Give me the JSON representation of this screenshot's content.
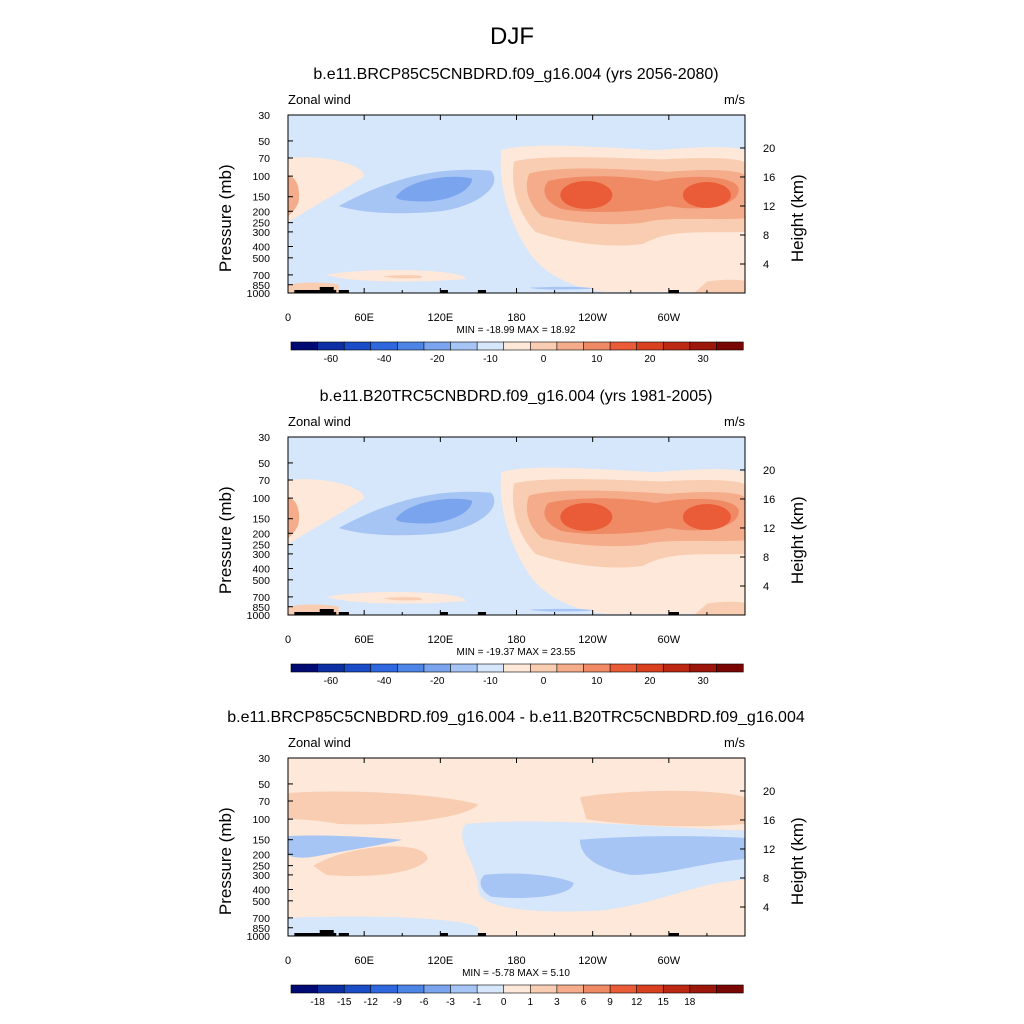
{
  "figure": {
    "title": "DJF"
  },
  "chart_data": [
    {
      "type": "heatmap",
      "title": "b.e11.BRCP85C5CNBDRD.f09_g16.004 (yrs 2056-2080)",
      "left_label": "Zonal wind",
      "right_label": "m/s",
      "ylabel": "Pressure (mb)",
      "ylabel_right": "Height (km)",
      "x_ticks": [
        "0",
        "60E",
        "120E",
        "180",
        "120W",
        "60W"
      ],
      "x_tick_lons": [
        0,
        60,
        120,
        180,
        240,
        300
      ],
      "xlim": [
        0,
        360
      ],
      "y_ticks": [
        "30",
        "50",
        "70",
        "100",
        "150",
        "200",
        "250",
        "300",
        "400",
        "500",
        "700",
        "850",
        "1000"
      ],
      "y_tick_values": [
        30,
        50,
        70,
        100,
        150,
        200,
        250,
        300,
        400,
        500,
        700,
        850,
        1000
      ],
      "y_scale": "log",
      "ylim": [
        1000,
        30
      ],
      "y2_ticks": [
        "20",
        "16",
        "12",
        "8",
        "4"
      ],
      "y2_tick_values": [
        20,
        16,
        12,
        8,
        4
      ],
      "stats": "MIN = -18.99  MAX =  18.92",
      "colorbar": {
        "levels": [
          "-60",
          "-40",
          "-20",
          "-10",
          "0",
          "10",
          "20",
          "30"
        ],
        "colors": [
          "#000a73",
          "#0c2fa3",
          "#1a4cc7",
          "#2f68de",
          "#4d85e6",
          "#7aa5ee",
          "#a6c5f5",
          "#d6e6fb",
          "#fde8d9",
          "#f9cdb2",
          "#f5ac8b",
          "#f08a65",
          "#ea5c37",
          "#d9401f",
          "#bd2813",
          "#9c160a",
          "#7a0603"
        ]
      },
      "features": [
        {
          "kind": "jet",
          "lon": 315,
          "p": 140,
          "value": 18.9
        },
        {
          "kind": "jet",
          "lon": 210,
          "p": 140,
          "value": 16
        },
        {
          "kind": "easterly",
          "lon": 105,
          "p": 120,
          "value": -19
        },
        {
          "kind": "surface_westerly",
          "lon": 95,
          "p": 750,
          "value": 5
        }
      ]
    },
    {
      "type": "heatmap",
      "title": "b.e11.B20TRC5CNBDRD.f09_g16.004 (yrs 1981-2005)",
      "left_label": "Zonal wind",
      "right_label": "m/s",
      "ylabel": "Pressure (mb)",
      "ylabel_right": "Height (km)",
      "x_ticks": [
        "0",
        "60E",
        "120E",
        "180",
        "120W",
        "60W"
      ],
      "x_tick_lons": [
        0,
        60,
        120,
        180,
        240,
        300
      ],
      "xlim": [
        0,
        360
      ],
      "y_ticks": [
        "30",
        "50",
        "70",
        "100",
        "150",
        "200",
        "250",
        "300",
        "400",
        "500",
        "700",
        "850",
        "1000"
      ],
      "y_tick_values": [
        30,
        50,
        70,
        100,
        150,
        200,
        250,
        300,
        400,
        500,
        700,
        850,
        1000
      ],
      "y_scale": "log",
      "ylim": [
        1000,
        30
      ],
      "y2_ticks": [
        "20",
        "16",
        "12",
        "8",
        "4"
      ],
      "y2_tick_values": [
        20,
        16,
        12,
        8,
        4
      ],
      "stats": "MIN = -19.37  MAX =  23.55",
      "colorbar": {
        "levels": [
          "-60",
          "-40",
          "-20",
          "-10",
          "0",
          "10",
          "20",
          "30"
        ],
        "colors": [
          "#000a73",
          "#0c2fa3",
          "#1a4cc7",
          "#2f68de",
          "#4d85e6",
          "#7aa5ee",
          "#a6c5f5",
          "#d6e6fb",
          "#fde8d9",
          "#f9cdb2",
          "#f5ac8b",
          "#f08a65",
          "#ea5c37",
          "#d9401f",
          "#bd2813",
          "#9c160a",
          "#7a0603"
        ]
      },
      "features": [
        {
          "kind": "jet",
          "lon": 240,
          "p": 155,
          "value": 23.5
        },
        {
          "kind": "jet",
          "lon": 330,
          "p": 155,
          "value": 22
        },
        {
          "kind": "easterly",
          "lon": 110,
          "p": 110,
          "value": -19.4
        },
        {
          "kind": "surface_westerly",
          "lon": 90,
          "p": 780,
          "value": 5
        }
      ]
    },
    {
      "type": "heatmap",
      "title": "b.e11.BRCP85C5CNBDRD.f09_g16.004 - b.e11.B20TRC5CNBDRD.f09_g16.004",
      "left_label": "Zonal wind",
      "right_label": "m/s",
      "ylabel": "Pressure (mb)",
      "ylabel_right": "Height (km)",
      "x_ticks": [
        "0",
        "60E",
        "120E",
        "180",
        "120W",
        "60W"
      ],
      "x_tick_lons": [
        0,
        60,
        120,
        180,
        240,
        300
      ],
      "xlim": [
        0,
        360
      ],
      "y_ticks": [
        "30",
        "50",
        "70",
        "100",
        "150",
        "200",
        "250",
        "300",
        "400",
        "500",
        "700",
        "850",
        "1000"
      ],
      "y_tick_values": [
        30,
        50,
        70,
        100,
        150,
        200,
        250,
        300,
        400,
        500,
        700,
        850,
        1000
      ],
      "y_scale": "log",
      "ylim": [
        1000,
        30
      ],
      "y2_ticks": [
        "20",
        "16",
        "12",
        "8",
        "4"
      ],
      "y2_tick_values": [
        20,
        16,
        12,
        8,
        4
      ],
      "stats": "MIN = -5.78  MAX =  5.10",
      "colorbar": {
        "levels": [
          "-18",
          "-15",
          "-12",
          "-9",
          "-6",
          "-3",
          "-1",
          "0",
          "1",
          "3",
          "6",
          "9",
          "12",
          "15",
          "18"
        ],
        "colors": [
          "#000a73",
          "#0c2fa3",
          "#1a4cc7",
          "#2f68de",
          "#4d85e6",
          "#7aa5ee",
          "#a6c5f5",
          "#d6e6fb",
          "#fde8d9",
          "#f9cdb2",
          "#f5ac8b",
          "#f08a65",
          "#ea5c37",
          "#d9401f",
          "#bd2813",
          "#9c160a",
          "#7a0603"
        ]
      },
      "features": [
        {
          "kind": "negative_band",
          "lon": 260,
          "p": 180,
          "value": -5.8
        },
        {
          "kind": "positive_band",
          "lon": 280,
          "p": 85,
          "value": 5.1
        },
        {
          "kind": "positive_band",
          "lon": 70,
          "p": 90,
          "value": 4
        }
      ]
    }
  ]
}
